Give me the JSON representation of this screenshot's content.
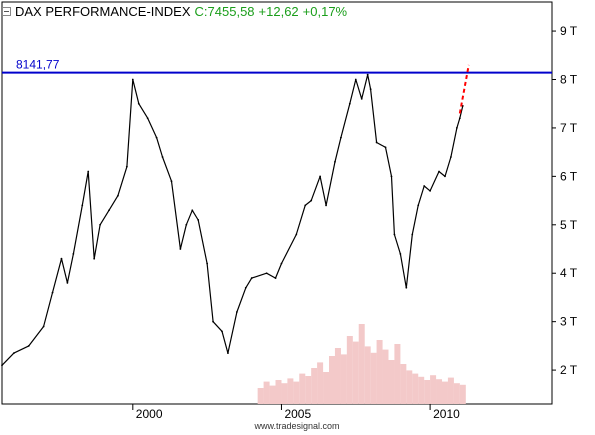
{
  "header": {
    "instrument": "DAX PERFORMANCE-INDEX",
    "close_label": "C:7455,58",
    "change": "+12,62",
    "change_pct": "+0,17%",
    "quote_color": "#1a9e1a"
  },
  "watermark": "www.tradesignal.com",
  "chart_data": {
    "type": "line",
    "title": "DAX PERFORMANCE-INDEX",
    "x_range": [
      1995.6,
      2014.1
    ],
    "y_range": [
      1300,
      9600
    ],
    "x_ticks": [
      {
        "value": 2000,
        "label": "2000"
      },
      {
        "value": 2005,
        "label": "2005"
      },
      {
        "value": 2010,
        "label": "2010"
      }
    ],
    "y_ticks": [
      {
        "value": 2000,
        "label": "2 T"
      },
      {
        "value": 3000,
        "label": "3 T"
      },
      {
        "value": 4000,
        "label": "4 T"
      },
      {
        "value": 5000,
        "label": "5 T"
      },
      {
        "value": 6000,
        "label": "6 T"
      },
      {
        "value": 7000,
        "label": "7 T"
      },
      {
        "value": 8000,
        "label": "8 T"
      },
      {
        "value": 9000,
        "label": "9 T"
      }
    ],
    "resistance_line": {
      "value": 8141.77,
      "label": "8141,77",
      "color": "#0000cc"
    },
    "projection": {
      "color": "#ff0000",
      "from": [
        2011.0,
        7300
      ],
      "to": [
        2011.3,
        8300
      ]
    },
    "series": [
      {
        "color": "#000000",
        "points": [
          [
            1995.6,
            2100
          ],
          [
            1996.0,
            2350
          ],
          [
            1996.5,
            2500
          ],
          [
            1997.0,
            2900
          ],
          [
            1997.3,
            3600
          ],
          [
            1997.6,
            4300
          ],
          [
            1997.8,
            3800
          ],
          [
            1998.0,
            4400
          ],
          [
            1998.3,
            5400
          ],
          [
            1998.5,
            6100
          ],
          [
            1998.7,
            4300
          ],
          [
            1998.9,
            5000
          ],
          [
            1999.2,
            5300
          ],
          [
            1999.5,
            5600
          ],
          [
            1999.8,
            6200
          ],
          [
            2000.0,
            8000
          ],
          [
            2000.2,
            7500
          ],
          [
            2000.5,
            7200
          ],
          [
            2000.8,
            6800
          ],
          [
            2001.0,
            6400
          ],
          [
            2001.3,
            5900
          ],
          [
            2001.6,
            4500
          ],
          [
            2001.8,
            5000
          ],
          [
            2002.0,
            5300
          ],
          [
            2002.2,
            5100
          ],
          [
            2002.5,
            4200
          ],
          [
            2002.7,
            3000
          ],
          [
            2003.0,
            2800
          ],
          [
            2003.2,
            2350
          ],
          [
            2003.5,
            3200
          ],
          [
            2003.8,
            3700
          ],
          [
            2004.0,
            3900
          ],
          [
            2004.5,
            4000
          ],
          [
            2004.8,
            3900
          ],
          [
            2005.0,
            4200
          ],
          [
            2005.5,
            4800
          ],
          [
            2005.8,
            5400
          ],
          [
            2006.0,
            5500
          ],
          [
            2006.3,
            6000
          ],
          [
            2006.5,
            5400
          ],
          [
            2006.8,
            6300
          ],
          [
            2007.0,
            6800
          ],
          [
            2007.3,
            7500
          ],
          [
            2007.5,
            8000
          ],
          [
            2007.7,
            7600
          ],
          [
            2007.9,
            8100
          ],
          [
            2008.0,
            7800
          ],
          [
            2008.2,
            6700
          ],
          [
            2008.5,
            6600
          ],
          [
            2008.7,
            6000
          ],
          [
            2008.8,
            4800
          ],
          [
            2009.0,
            4400
          ],
          [
            2009.2,
            3700
          ],
          [
            2009.4,
            4800
          ],
          [
            2009.6,
            5400
          ],
          [
            2009.8,
            5800
          ],
          [
            2010.0,
            5700
          ],
          [
            2010.3,
            6100
          ],
          [
            2010.5,
            6000
          ],
          [
            2010.7,
            6400
          ],
          [
            2010.9,
            7000
          ],
          [
            2011.0,
            7200
          ],
          [
            2011.1,
            7455
          ]
        ]
      }
    ],
    "volume": [
      [
        2004.3,
        200
      ],
      [
        2004.5,
        280
      ],
      [
        2004.7,
        230
      ],
      [
        2004.9,
        300
      ],
      [
        2005.1,
        260
      ],
      [
        2005.3,
        320
      ],
      [
        2005.5,
        280
      ],
      [
        2005.7,
        380
      ],
      [
        2005.9,
        350
      ],
      [
        2006.1,
        450
      ],
      [
        2006.3,
        520
      ],
      [
        2006.5,
        400
      ],
      [
        2006.7,
        600
      ],
      [
        2006.9,
        700
      ],
      [
        2007.1,
        620
      ],
      [
        2007.3,
        850
      ],
      [
        2007.5,
        780
      ],
      [
        2007.7,
        1000
      ],
      [
        2007.9,
        720
      ],
      [
        2008.1,
        640
      ],
      [
        2008.3,
        800
      ],
      [
        2008.5,
        680
      ],
      [
        2008.7,
        550
      ],
      [
        2008.9,
        750
      ],
      [
        2009.1,
        500
      ],
      [
        2009.3,
        420
      ],
      [
        2009.5,
        380
      ],
      [
        2009.7,
        340
      ],
      [
        2009.9,
        300
      ],
      [
        2010.1,
        360
      ],
      [
        2010.3,
        310
      ],
      [
        2010.5,
        280
      ],
      [
        2010.7,
        330
      ],
      [
        2010.9,
        260
      ],
      [
        2011.1,
        240
      ]
    ]
  }
}
